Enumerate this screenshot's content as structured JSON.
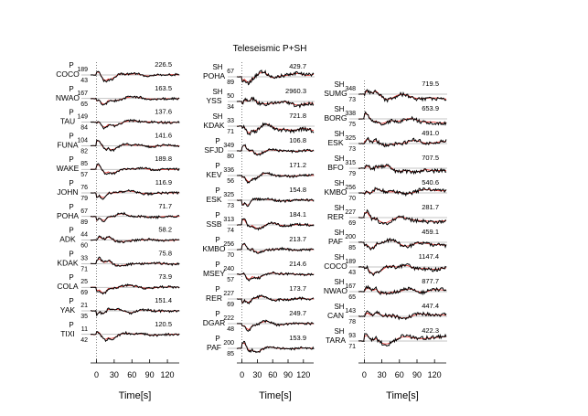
{
  "chart_data": {
    "type": "line",
    "title": "Teleseismic P+SH",
    "xlabel": "Time[s]",
    "xlim": [
      -10,
      140
    ],
    "xticks": [
      0,
      30,
      60,
      90,
      120
    ],
    "legend": "none",
    "colors": {
      "observed": "#000000",
      "synthetic": "#e0201b",
      "zero_line": "#8c8c8c"
    },
    "series": [
      "observed",
      "synthetic"
    ],
    "columns": [
      {
        "traces": [
          {
            "station": "COCO",
            "phase": "P",
            "azimuth": "189",
            "distance": "43",
            "amplitude": "226.5"
          },
          {
            "station": "NWAO",
            "phase": "P",
            "azimuth": "167",
            "distance": "65",
            "amplitude": "163.5"
          },
          {
            "station": "TAU",
            "phase": "P",
            "azimuth": "149",
            "distance": "84",
            "amplitude": "137.6"
          },
          {
            "station": "FUNA",
            "phase": "P",
            "azimuth": "104",
            "distance": "82",
            "amplitude": "141.6"
          },
          {
            "station": "WAKE",
            "phase": "P",
            "azimuth": "85",
            "distance": "57",
            "amplitude": "189.8"
          },
          {
            "station": "JOHN",
            "phase": "P",
            "azimuth": "76",
            "distance": "79",
            "amplitude": "116.9"
          },
          {
            "station": "POHA",
            "phase": "P",
            "azimuth": "67",
            "distance": "89",
            "amplitude": "71.7"
          },
          {
            "station": "ADK",
            "phase": "P",
            "azimuth": "44",
            "distance": "60",
            "amplitude": "58.2"
          },
          {
            "station": "KDAK",
            "phase": "P",
            "azimuth": "33",
            "distance": "71",
            "amplitude": "75.8"
          },
          {
            "station": "COLA",
            "phase": "P",
            "azimuth": "25",
            "distance": "69",
            "amplitude": "73.9"
          },
          {
            "station": "YAK",
            "phase": "P",
            "azimuth": "21",
            "distance": "35",
            "amplitude": "151.4"
          },
          {
            "station": "TIXI",
            "phase": "P",
            "azimuth": "11",
            "distance": "42",
            "amplitude": "120.5"
          }
        ]
      },
      {
        "traces": [
          {
            "station": "POHA",
            "phase": "SH",
            "azimuth": "67",
            "distance": "89",
            "amplitude": "429.7"
          },
          {
            "station": "YSS",
            "phase": "SH",
            "azimuth": "50",
            "distance": "34",
            "amplitude": "2960.3"
          },
          {
            "station": "KDAK",
            "phase": "SH",
            "azimuth": "33",
            "distance": "71",
            "amplitude": "721.8"
          },
          {
            "station": "SFJD",
            "phase": "P",
            "azimuth": "349",
            "distance": "80",
            "amplitude": "106.8"
          },
          {
            "station": "KEV",
            "phase": "P",
            "azimuth": "336",
            "distance": "56",
            "amplitude": "171.2"
          },
          {
            "station": "ESK",
            "phase": "P",
            "azimuth": "325",
            "distance": "73",
            "amplitude": "154.8"
          },
          {
            "station": "SSB",
            "phase": "P",
            "azimuth": "313",
            "distance": "74",
            "amplitude": "184.1"
          },
          {
            "station": "KMBO",
            "phase": "P",
            "azimuth": "256",
            "distance": "70",
            "amplitude": "213.7"
          },
          {
            "station": "MSEY",
            "phase": "P",
            "azimuth": "240",
            "distance": "57",
            "amplitude": "214.6"
          },
          {
            "station": "RER",
            "phase": "P",
            "azimuth": "227",
            "distance": "69",
            "amplitude": "173.7"
          },
          {
            "station": "DGAR",
            "phase": "P",
            "azimuth": "222",
            "distance": "48",
            "amplitude": "249.7"
          },
          {
            "station": "PAF",
            "phase": "P",
            "azimuth": "200",
            "distance": "85",
            "amplitude": "153.9"
          }
        ]
      },
      {
        "traces": [
          {
            "station": "SUMG",
            "phase": "SH",
            "azimuth": "348",
            "distance": "73",
            "amplitude": "719.5"
          },
          {
            "station": "BORG",
            "phase": "SH",
            "azimuth": "338",
            "distance": "75",
            "amplitude": "653.9"
          },
          {
            "station": "ESK",
            "phase": "SH",
            "azimuth": "325",
            "distance": "73",
            "amplitude": "491.0"
          },
          {
            "station": "BFO",
            "phase": "SH",
            "azimuth": "315",
            "distance": "79",
            "amplitude": "707.5"
          },
          {
            "station": "KMBO",
            "phase": "SH",
            "azimuth": "256",
            "distance": "70",
            "amplitude": "540.6"
          },
          {
            "station": "RER",
            "phase": "SH",
            "azimuth": "227",
            "distance": "69",
            "amplitude": "281.7"
          },
          {
            "station": "PAF",
            "phase": "SH",
            "azimuth": "200",
            "distance": "85",
            "amplitude": "459.1"
          },
          {
            "station": "COCO",
            "phase": "SH",
            "azimuth": "189",
            "distance": "43",
            "amplitude": "1147.4"
          },
          {
            "station": "NWAO",
            "phase": "SH",
            "azimuth": "167",
            "distance": "65",
            "amplitude": "877.7"
          },
          {
            "station": "CAN",
            "phase": "SH",
            "azimuth": "143",
            "distance": "78",
            "amplitude": "447.4"
          },
          {
            "station": "TARA",
            "phase": "SH",
            "azimuth": "93",
            "distance": "71",
            "amplitude": "422.3"
          }
        ]
      }
    ]
  }
}
